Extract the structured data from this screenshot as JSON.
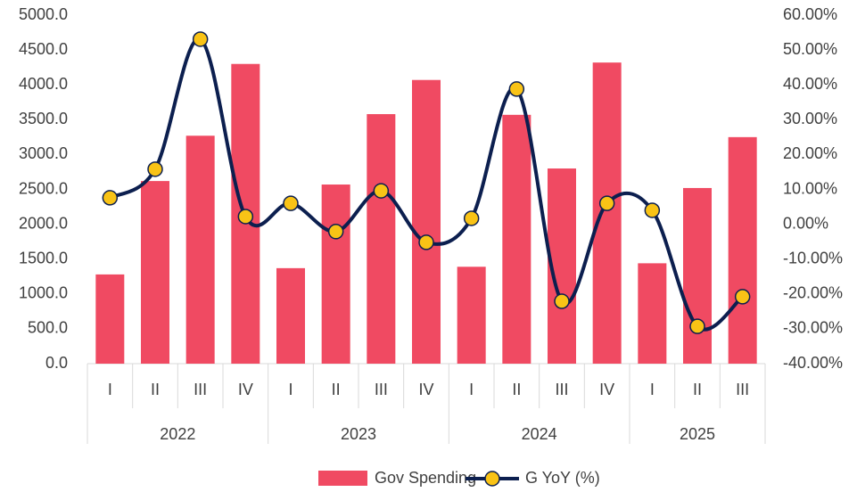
{
  "chart_data": {
    "type": "bar_line",
    "groups": [
      {
        "name": "2022",
        "categories": [
          "I",
          "II",
          "III",
          "IV"
        ]
      },
      {
        "name": "2023",
        "categories": [
          "I",
          "II",
          "III",
          "IV"
        ]
      },
      {
        "name": "2024",
        "categories": [
          "I",
          "II",
          "III",
          "IV"
        ]
      },
      {
        "name": "2025",
        "categories": [
          "I",
          "II",
          "III"
        ]
      }
    ],
    "series": [
      {
        "name": "Gov Spending",
        "type": "bar",
        "color": "#f04a62",
        "values": [
          1280,
          2620,
          3270,
          4300,
          1370,
          2570,
          3580,
          4070,
          1390,
          3570,
          2800,
          4320,
          1440,
          2520,
          3250
        ]
      },
      {
        "name": "G YoY (%)",
        "type": "line",
        "axis": "y2",
        "color": "#0c1f4f",
        "marker_color": "#f9c316",
        "values": [
          7.6,
          15.8,
          53.1,
          2.2,
          6.0,
          -2.1,
          9.6,
          -5.2,
          1.7,
          38.8,
          -22.1,
          6.0,
          4.0,
          -29.3,
          -20.8
        ]
      }
    ],
    "ylim": [
      0,
      5000
    ],
    "yticks": [
      {
        "value": 0,
        "label": "0.0"
      },
      {
        "value": 500,
        "label": "500.0"
      },
      {
        "value": 1000,
        "label": "1000.0"
      },
      {
        "value": 1500,
        "label": "1500.0"
      },
      {
        "value": 2000,
        "label": "2000.0"
      },
      {
        "value": 2500,
        "label": "2500.0"
      },
      {
        "value": 3000,
        "label": "3000.0"
      },
      {
        "value": 3500,
        "label": "3500.0"
      },
      {
        "value": 4000,
        "label": "4000.0"
      },
      {
        "value": 4500,
        "label": "4500.0"
      },
      {
        "value": 5000,
        "label": "5000.0"
      }
    ],
    "y2lim": [
      -40,
      60
    ],
    "y2ticks": [
      {
        "value": -40,
        "label": "-40.00%"
      },
      {
        "value": -30,
        "label": "-30.00%"
      },
      {
        "value": -20,
        "label": "-20.00%"
      },
      {
        "value": -10,
        "label": "-10.00%"
      },
      {
        "value": 0,
        "label": "0.00%"
      },
      {
        "value": 10,
        "label": "10.00%"
      },
      {
        "value": 20,
        "label": "20.00%"
      },
      {
        "value": 30,
        "label": "30.00%"
      },
      {
        "value": 40,
        "label": "40.00%"
      },
      {
        "value": 50,
        "label": "50.00%"
      },
      {
        "value": 60,
        "label": "60.00%"
      }
    ],
    "legend": "bottom"
  }
}
